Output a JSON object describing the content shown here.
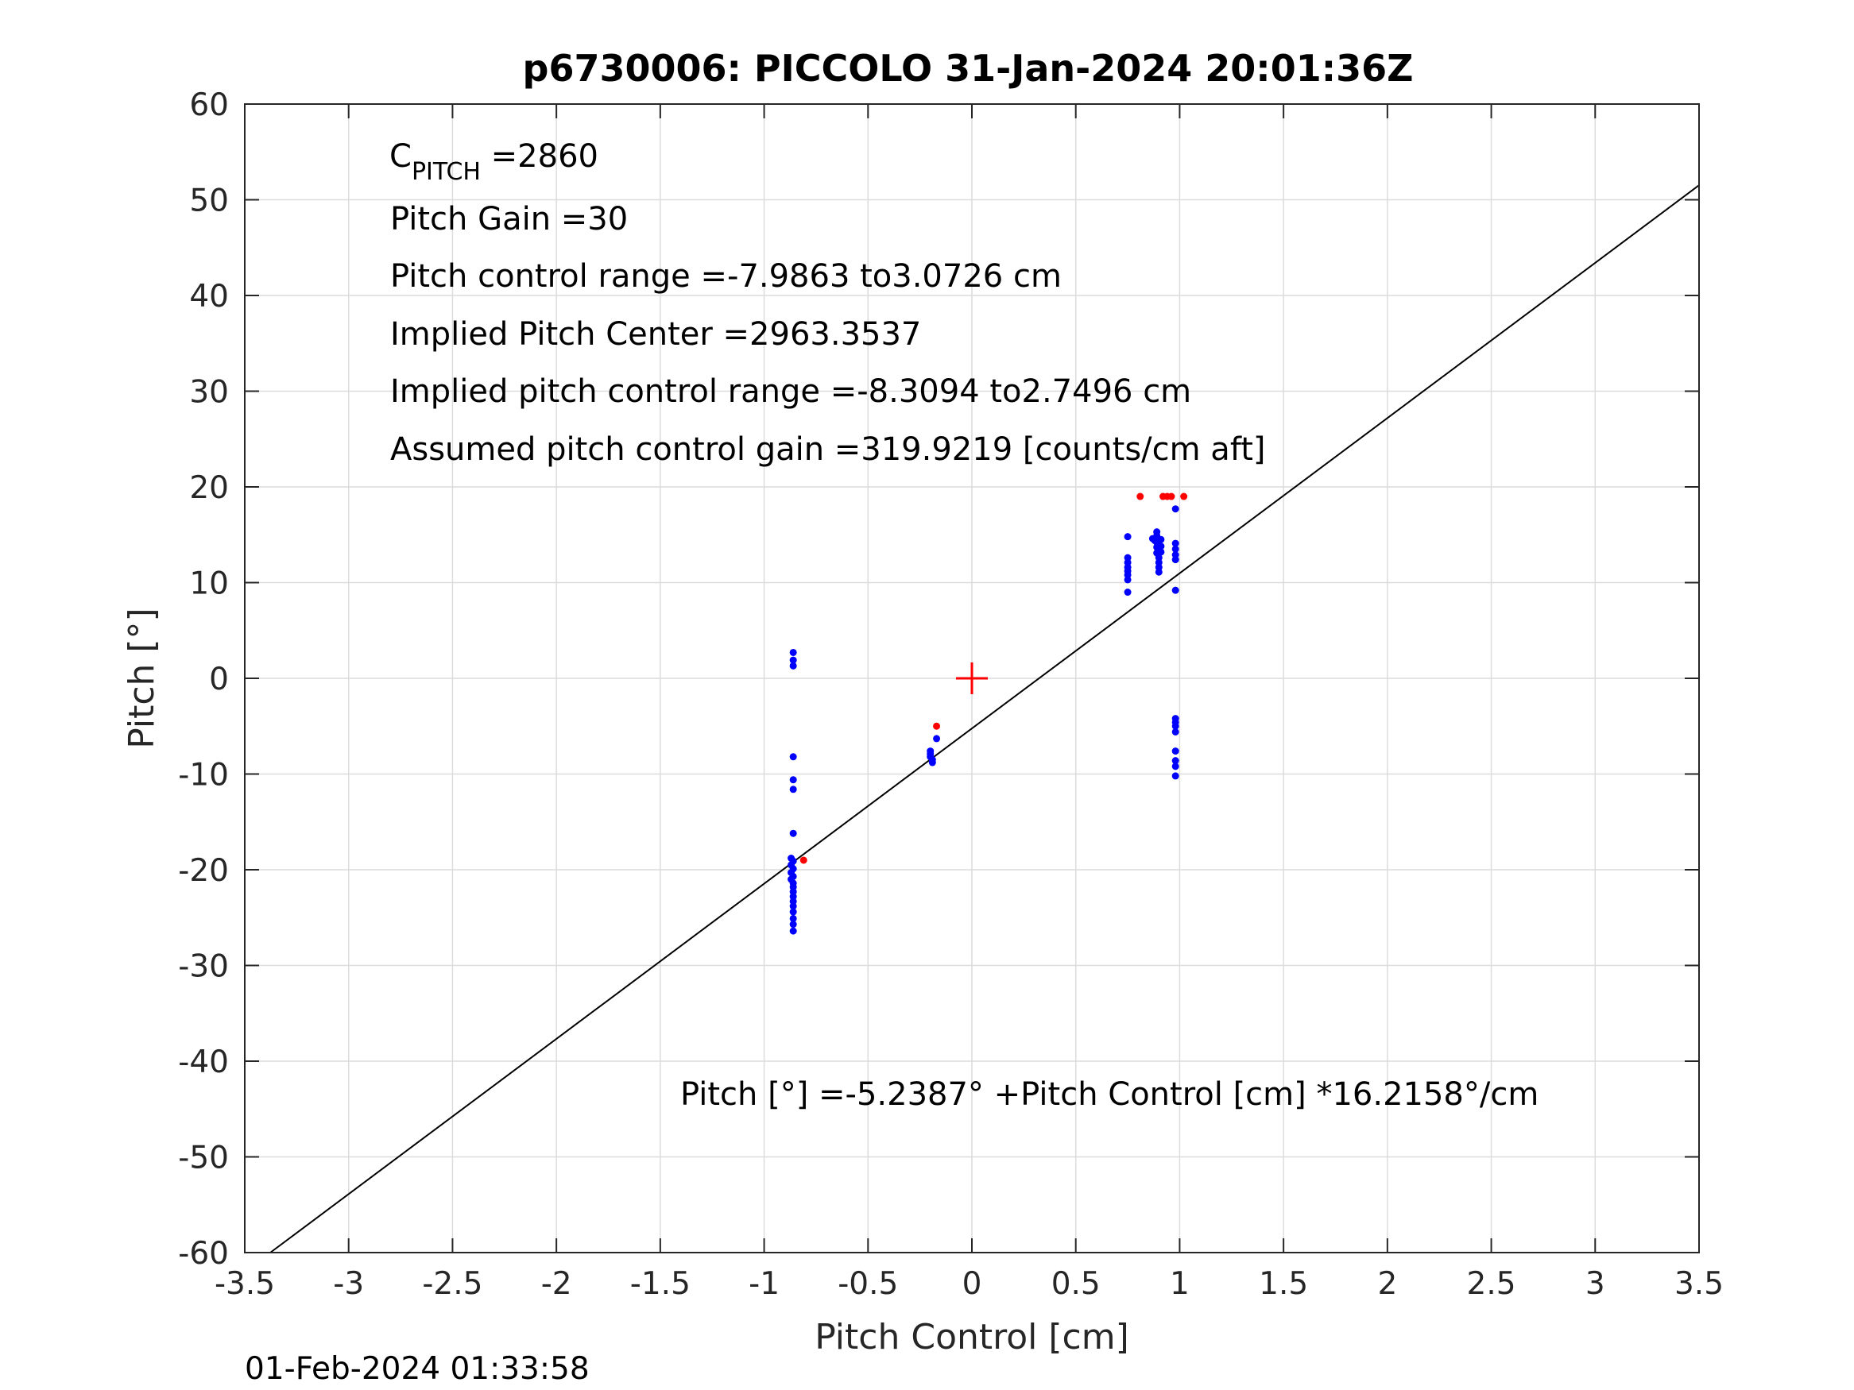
{
  "title": "p6730006: PICCOLO 31-Jan-2024 20:01:36Z",
  "footer_timestamp": "01-Feb-2024 01:33:58",
  "annotations": {
    "c_pitch_symbol": "C",
    "c_pitch_subscript": "PITCH",
    "c_pitch_value": " =2860",
    "pitch_gain": "Pitch Gain =30",
    "pitch_control_range": "Pitch control range =-7.9863 to3.0726 cm",
    "implied_pitch_center": "Implied Pitch Center =2963.3537",
    "implied_pitch_control_range": "Implied pitch control range =-8.3094 to2.7496 cm",
    "assumed_gain": "Assumed pitch control gain =319.9219 [counts/cm aft]",
    "fit_equation": "Pitch [°] =-5.2387° +Pitch Control [cm] *16.2158°/cm"
  },
  "colors": {
    "primary_points": "#0000ff",
    "secondary_points": "#ff0000",
    "center_marker": "#ff0000",
    "fit_line": "#000000",
    "axis": "#262626",
    "grid": "#dcdcdc"
  },
  "chart_data": {
    "type": "scatter",
    "title": "p6730006: PICCOLO 31-Jan-2024 20:01:36Z",
    "xlabel": "Pitch Control [cm]",
    "ylabel": "Pitch [°]",
    "xlim": [
      -3.5,
      3.5
    ],
    "ylim": [
      -60,
      60
    ],
    "xticks": [
      -3.5,
      -3,
      -2.5,
      -2,
      -1.5,
      -1,
      -0.5,
      0,
      0.5,
      1,
      1.5,
      2,
      2.5,
      3,
      3.5
    ],
    "yticks": [
      -60,
      -50,
      -40,
      -30,
      -20,
      -10,
      0,
      10,
      20,
      30,
      40,
      50,
      60
    ],
    "xtick_labels": [
      "-3.5",
      "-3",
      "-2.5",
      "-2",
      "-1.5",
      "-1",
      "-0.5",
      "0",
      "0.5",
      "1",
      "1.5",
      "2",
      "2.5",
      "3",
      "3.5"
    ],
    "ytick_labels": [
      "-60",
      "-50",
      "-40",
      "-30",
      "-20",
      "-10",
      "0",
      "10",
      "20",
      "30",
      "40",
      "50",
      "60"
    ],
    "grid": true,
    "fit_line": {
      "intercept": -5.2387,
      "slope": 16.2158
    },
    "center_marker": {
      "x": 0,
      "y": 0,
      "marker": "+"
    },
    "series": [
      {
        "color": "#0000ff",
        "points": [
          [
            -0.86,
            2.7
          ],
          [
            -0.86,
            1.9
          ],
          [
            -0.86,
            1.3
          ],
          [
            -0.86,
            -8.2
          ],
          [
            -0.86,
            -10.6
          ],
          [
            -0.86,
            -11.6
          ],
          [
            -0.86,
            -16.2
          ],
          [
            -0.87,
            -18.8
          ],
          [
            -0.86,
            -19.1
          ],
          [
            -0.87,
            -19.5
          ],
          [
            -0.86,
            -19.9
          ],
          [
            -0.87,
            -20.3
          ],
          [
            -0.86,
            -20.7
          ],
          [
            -0.87,
            -21.0
          ],
          [
            -0.86,
            -21.4
          ],
          [
            -0.86,
            -21.8
          ],
          [
            -0.86,
            -22.3
          ],
          [
            -0.86,
            -22.8
          ],
          [
            -0.86,
            -23.3
          ],
          [
            -0.86,
            -23.8
          ],
          [
            -0.86,
            -24.4
          ],
          [
            -0.86,
            -25.1
          ],
          [
            -0.86,
            -25.7
          ],
          [
            -0.86,
            -26.4
          ],
          [
            -0.2,
            -7.6
          ],
          [
            -0.2,
            -7.9
          ],
          [
            -0.2,
            -8.2
          ],
          [
            -0.19,
            -8.5
          ],
          [
            -0.19,
            -8.8
          ],
          [
            -0.17,
            -6.3
          ],
          [
            0.75,
            14.8
          ],
          [
            0.75,
            12.6
          ],
          [
            0.75,
            12.1
          ],
          [
            0.75,
            11.6
          ],
          [
            0.75,
            11.2
          ],
          [
            0.75,
            10.8
          ],
          [
            0.75,
            10.3
          ],
          [
            0.75,
            9.0
          ],
          [
            0.87,
            14.6
          ],
          [
            0.88,
            14.4
          ],
          [
            0.89,
            15.3
          ],
          [
            0.89,
            14.9
          ],
          [
            0.89,
            14.2
          ],
          [
            0.89,
            13.7
          ],
          [
            0.89,
            13.1
          ],
          [
            0.9,
            12.6
          ],
          [
            0.9,
            12.1
          ],
          [
            0.9,
            11.6
          ],
          [
            0.9,
            11.1
          ],
          [
            0.91,
            14.5
          ],
          [
            0.91,
            13.8
          ],
          [
            0.91,
            13.2
          ],
          [
            0.98,
            17.7
          ],
          [
            0.98,
            14.1
          ],
          [
            0.98,
            13.5
          ],
          [
            0.98,
            12.9
          ],
          [
            0.98,
            12.4
          ],
          [
            0.98,
            9.2
          ],
          [
            0.98,
            -4.2
          ],
          [
            0.98,
            -4.6
          ],
          [
            0.98,
            -5.0
          ],
          [
            0.98,
            -5.6
          ],
          [
            0.98,
            -7.6
          ],
          [
            0.98,
            -8.6
          ],
          [
            0.98,
            -9.2
          ],
          [
            0.98,
            -10.2
          ]
        ]
      },
      {
        "color": "#ff0000",
        "points": [
          [
            -0.81,
            -19.0
          ],
          [
            -0.17,
            -5.0
          ],
          [
            0.81,
            19.0
          ],
          [
            0.92,
            19.0
          ],
          [
            0.94,
            19.0
          ],
          [
            0.96,
            19.0
          ],
          [
            1.02,
            19.0
          ]
        ]
      }
    ]
  }
}
